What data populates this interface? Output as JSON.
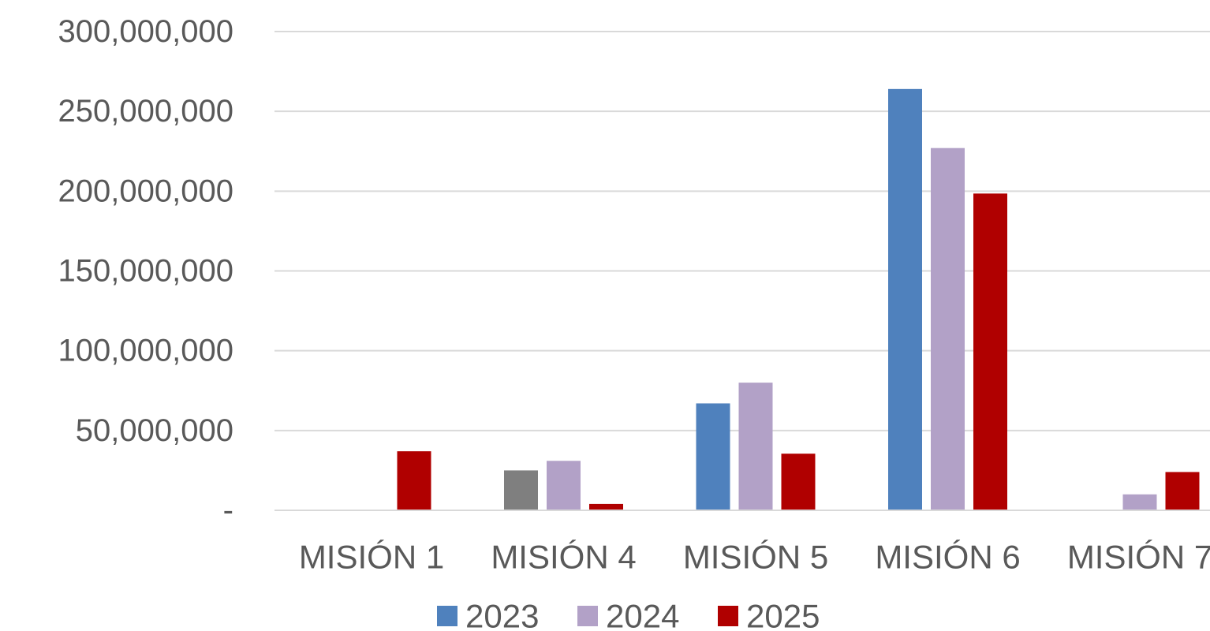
{
  "chart_data": {
    "type": "bar",
    "title": "",
    "xlabel": "",
    "ylabel": "",
    "ylim": [
      0,
      300000000
    ],
    "y_ticks": [
      0,
      50000000,
      100000000,
      150000000,
      200000000,
      250000000,
      300000000
    ],
    "y_tick_labels": [
      "-",
      "50,000,000",
      "100,000,000",
      "150,000,000",
      "200,000,000",
      "250,000,000",
      "300,000,000"
    ],
    "categories": [
      "MISIÓN 1",
      "MISIÓN 4",
      "MISIÓN 5",
      "MISIÓN 6",
      "MISIÓN 7"
    ],
    "grid": true,
    "legend_position": "bottom",
    "series": [
      {
        "name": "2023",
        "color": "#4f81bd",
        "values": [
          0,
          25000000,
          67000000,
          264000000,
          0
        ],
        "point_colors": [
          null,
          "#7f7f7f",
          null,
          null,
          null
        ]
      },
      {
        "name": "2024",
        "color": "#b2a1c7",
        "values": [
          0,
          31000000,
          80000000,
          227000000,
          10000000
        ]
      },
      {
        "name": "2025",
        "color": "#b00000",
        "values": [
          37000000,
          4000000,
          35500000,
          198500000,
          24000000
        ]
      }
    ]
  }
}
